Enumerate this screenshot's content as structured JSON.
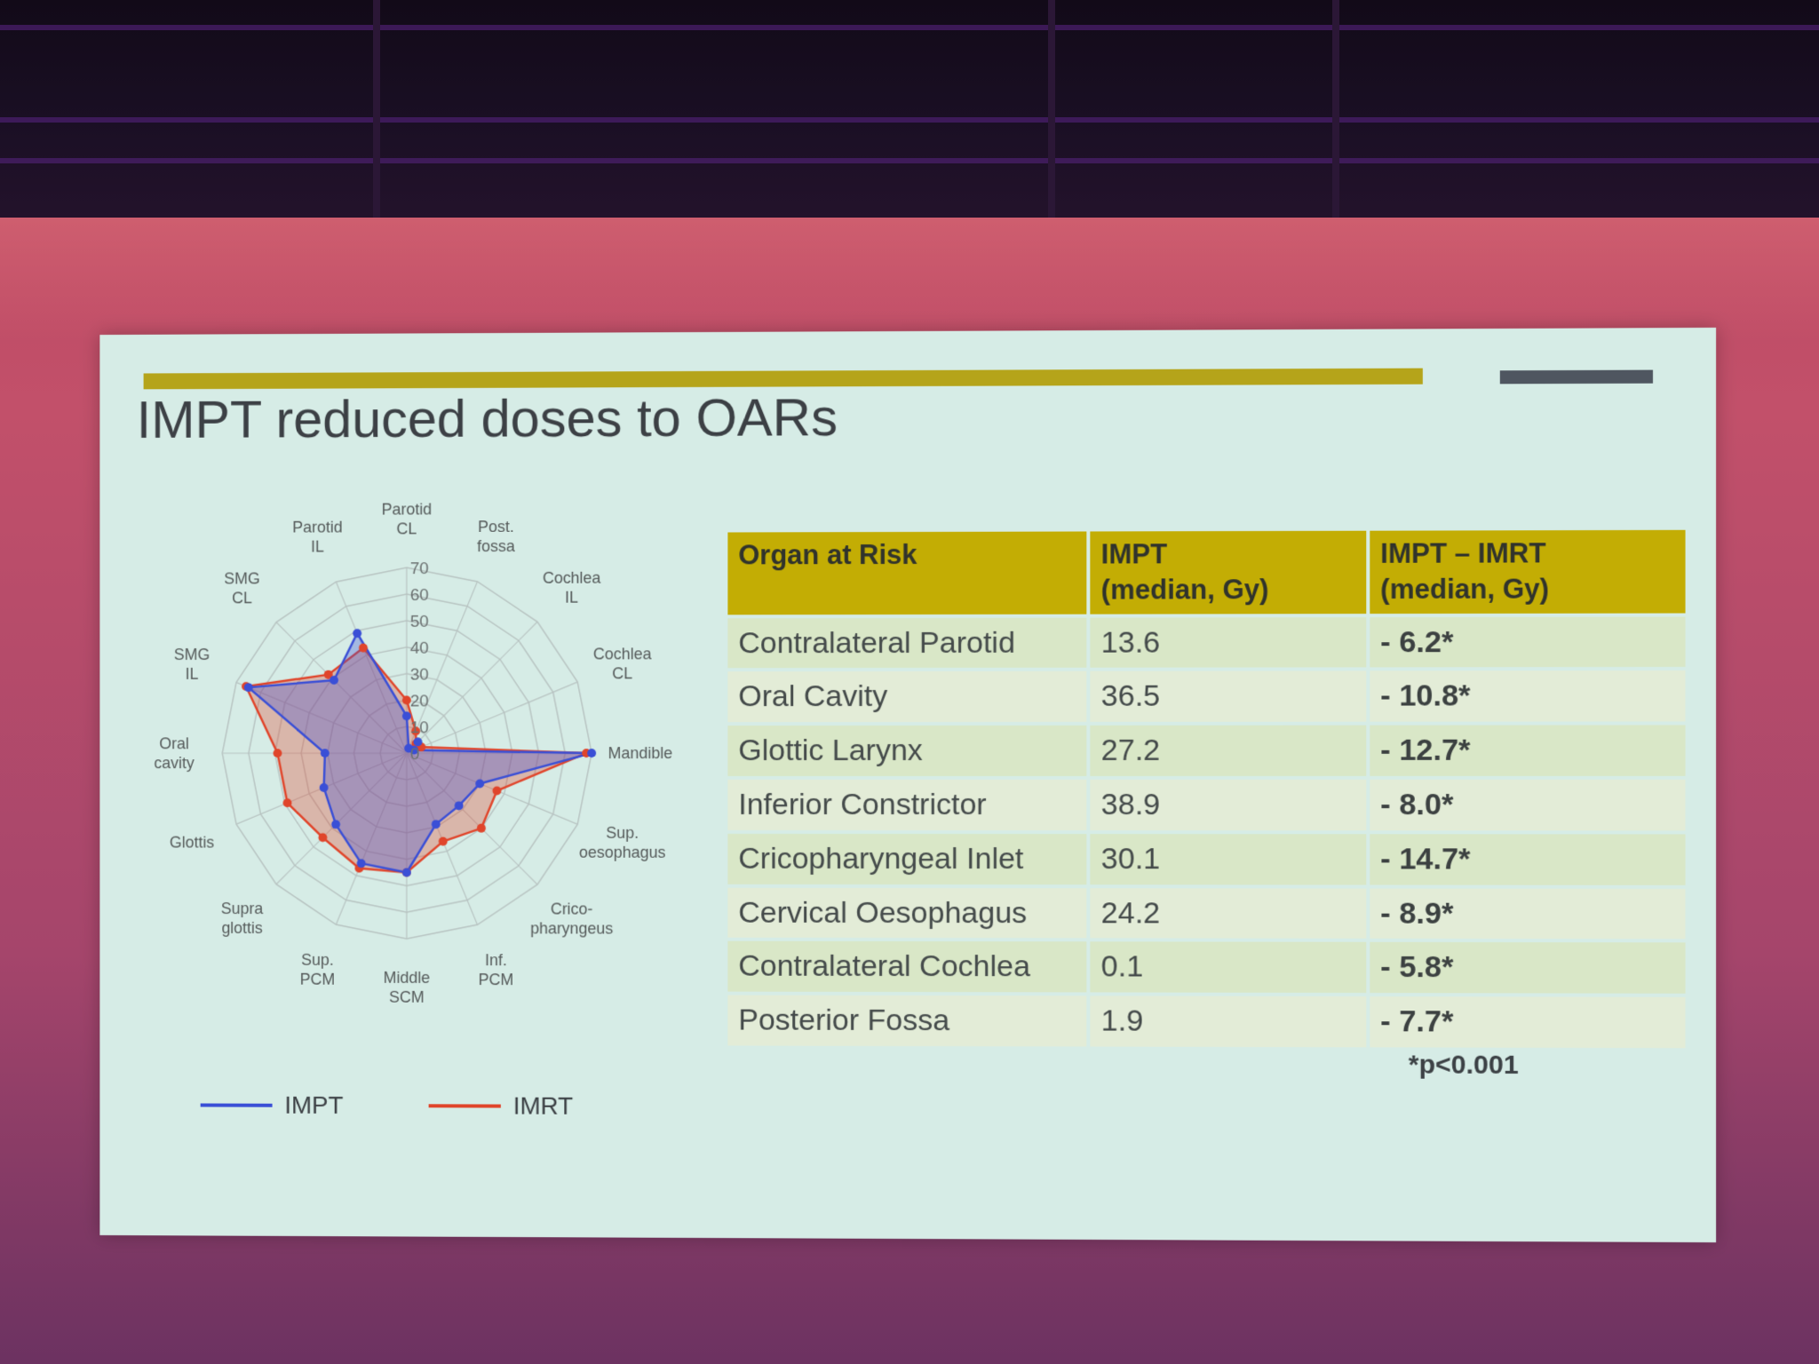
{
  "slide": {
    "title": "IMPT reduced doses to OARs"
  },
  "chart_data": {
    "type": "radar",
    "axes": [
      "Parotid CL",
      "Post. fossa",
      "Cochlea IL",
      "Cochlea CL",
      "Mandible",
      "Sup. oesophagus",
      "Crico-pharyngeus",
      "Inf. PCM",
      "Middle SCM",
      "Sup. PCM",
      "Supra glottis",
      "Glottis",
      "Oral cavity",
      "SMG IL",
      "SMG CL",
      "Parotid IL"
    ],
    "axis_label_lines": [
      [
        "Parotid",
        "CL"
      ],
      [
        "Post.",
        "fossa"
      ],
      [
        "Cochlea",
        "IL"
      ],
      [
        "Cochlea",
        "CL"
      ],
      [
        "Mandible"
      ],
      [
        "Sup.",
        "oesophagus"
      ],
      [
        "Crico-",
        "pharyngeus"
      ],
      [
        "Inf.",
        "PCM"
      ],
      [
        "Middle",
        "SCM"
      ],
      [
        "Sup.",
        "PCM"
      ],
      [
        "Supra",
        "glottis"
      ],
      [
        "Glottis"
      ],
      [
        "Oral",
        "cavity"
      ],
      [
        "SMG",
        "IL"
      ],
      [
        "SMG",
        "CL"
      ],
      [
        "Parotid",
        "IL"
      ]
    ],
    "ticks": [
      "0",
      "10",
      "20",
      "30",
      "40",
      "50",
      "60",
      "70"
    ],
    "rlim": [
      0,
      70
    ],
    "series": [
      {
        "name": "IMPT",
        "color": "#3a4fd6",
        "values": [
          14,
          2,
          6,
          3,
          70,
          30,
          28,
          29,
          45,
          45,
          38,
          34,
          31,
          65,
          39,
          49
        ]
      },
      {
        "name": "IMRT",
        "color": "#e0452b",
        "values": [
          20,
          9,
          5,
          6,
          68,
          37,
          40,
          36,
          45,
          47,
          45,
          49,
          49,
          66,
          42,
          43
        ]
      }
    ],
    "legend_position": "bottom"
  },
  "table": {
    "headers": [
      [
        "Organ at Risk"
      ],
      [
        "IMPT",
        "(median, Gy)"
      ],
      [
        "IMPT – IMRT",
        "(median, Gy)"
      ]
    ],
    "rows": [
      {
        "organ": "Contralateral Parotid",
        "impt": "13.6",
        "diff": "- 6.2*"
      },
      {
        "organ": "Oral Cavity",
        "impt": "36.5",
        "diff": "- 10.8*"
      },
      {
        "organ": "Glottic Larynx",
        "impt": "27.2",
        "diff": "- 12.7*"
      },
      {
        "organ": "Inferior Constrictor",
        "impt": "38.9",
        "diff": "- 8.0*"
      },
      {
        "organ": "Cricopharyngeal Inlet",
        "impt": "30.1",
        "diff": "- 14.7*"
      },
      {
        "organ": "Cervical Oesophagus",
        "impt": "24.2",
        "diff": "- 8.9*"
      },
      {
        "organ": "Contralateral Cochlea",
        "impt": "0.1",
        "diff": "- 5.8*"
      },
      {
        "organ": "Posterior Fossa",
        "impt": "1.9",
        "diff": "- 7.7*"
      }
    ],
    "footnote": "*p<0.001"
  },
  "colors": {
    "accent": "#b5a41a",
    "header_fill": "#c3ad04",
    "slide_bg": "#d6ece6",
    "impt": "#3a4fd6",
    "imrt": "#e0452b"
  }
}
